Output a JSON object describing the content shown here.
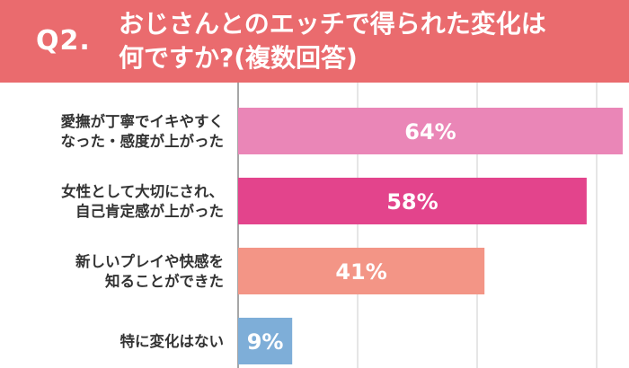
{
  "header": {
    "question": "Q2.",
    "title_lines": [
      "おじさんとのエッチで得られた変化は",
      "何ですか?(複数回答)"
    ]
  },
  "chart_data": {
    "type": "bar",
    "orientation": "horizontal",
    "categories": [
      [
        "愛撫が丁寧でイキやすく",
        "なった・感度が上がった"
      ],
      [
        "女性として大切にされ、",
        "自己肯定感が上がった"
      ],
      [
        "新しいプレイや快感を",
        "知ることができた"
      ],
      [
        "特に変化はない"
      ]
    ],
    "values": [
      64,
      58,
      41,
      9
    ],
    "value_labels": [
      "64%",
      "58%",
      "41%",
      "9%"
    ],
    "colors": [
      "#ea86b7",
      "#e3448c",
      "#f39586",
      "#7eaed8"
    ],
    "xlim": [
      0,
      64
    ],
    "grid": true,
    "grid_color": "#cccccc",
    "axis_color": "#888888"
  }
}
